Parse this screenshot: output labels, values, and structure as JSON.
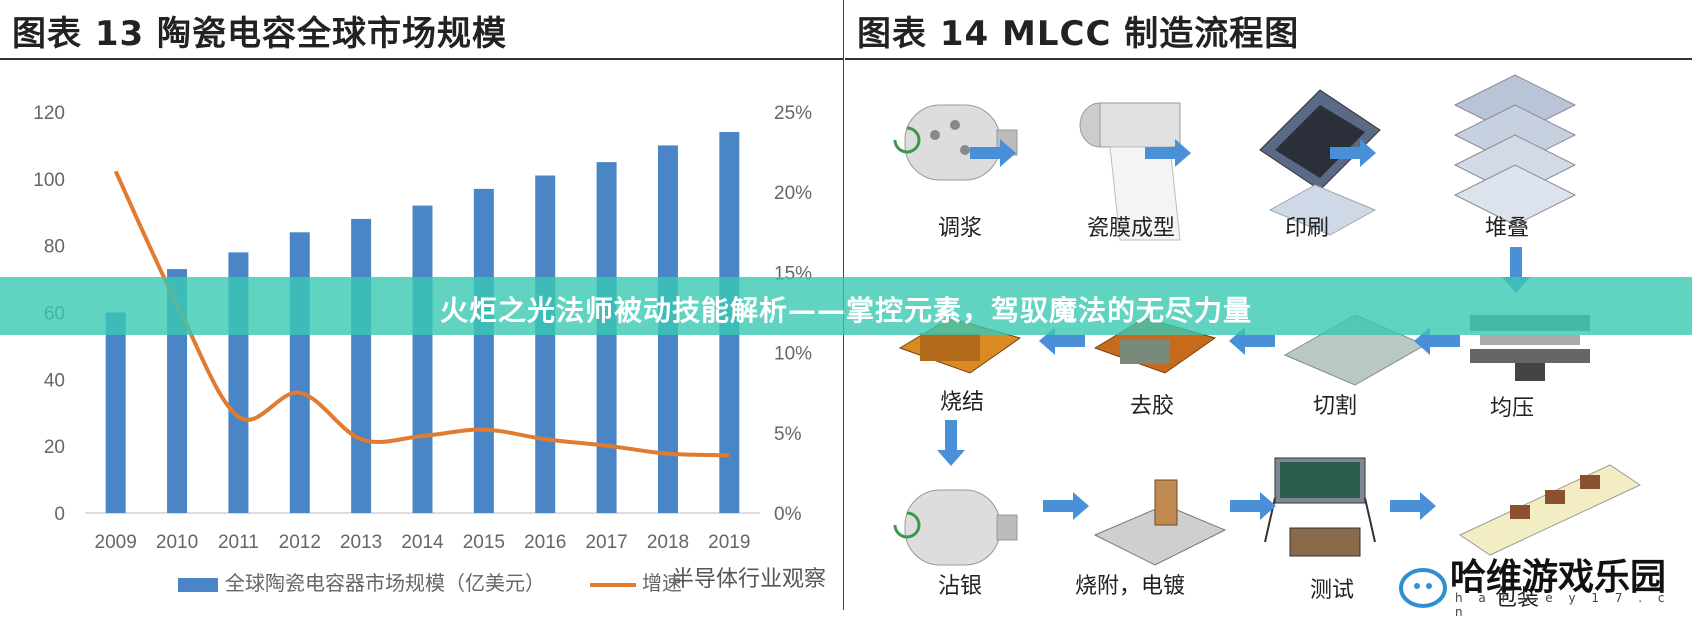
{
  "left_panel": {
    "title": "图表 13 陶瓷电容全球市场规模",
    "source": "半导体行业观察"
  },
  "right_panel": {
    "title": "图表 14 MLCC 制造流程图",
    "steps": [
      "调浆",
      "瓷膜成型",
      "印刷",
      "堆叠",
      "烧结",
      "去胶",
      "切割",
      "均压",
      "沾银",
      "烧附，电镀",
      "测试",
      "包装"
    ]
  },
  "banner": {
    "text": "火炬之光法师被动技能解析——掌控元素，驾驭魔法的无尽力量"
  },
  "watermark": {
    "text": "哈维游戏乐园",
    "url": "h a r v e y 1 7 . c n"
  },
  "chart_data": {
    "type": "bar",
    "title": "",
    "categories": [
      "2009",
      "2010",
      "2011",
      "2012",
      "2013",
      "2014",
      "2015",
      "2016",
      "2017",
      "2018",
      "2019"
    ],
    "y_left_ticks": [
      "0",
      "20",
      "40",
      "60",
      "80",
      "100",
      "120"
    ],
    "y_right_ticks": [
      "0%",
      "5%",
      "10%",
      "15%",
      "20%",
      "25%"
    ],
    "ylim_left": [
      0,
      120
    ],
    "ylim_right": [
      0,
      25
    ],
    "series": [
      {
        "name": "全球陶瓷电容器市场规模（亿美元）",
        "type": "bar",
        "axis": "left",
        "color": "#4A86C5",
        "values": [
          60,
          73,
          78,
          84,
          88,
          92,
          97,
          101,
          105,
          110,
          114
        ]
      },
      {
        "name": "增速",
        "type": "line",
        "axis": "right",
        "color": "#E07B30",
        "values": [
          21.3,
          13.0,
          6.0,
          7.5,
          4.6,
          4.8,
          5.2,
          4.6,
          4.2,
          3.7,
          3.6
        ]
      }
    ],
    "grid": false,
    "legend": "bottom"
  }
}
